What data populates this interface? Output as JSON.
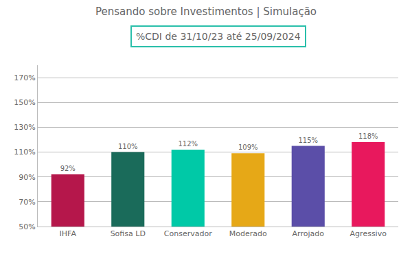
{
  "chart_data": {
    "type": "bar",
    "title": "Pensando sobre Investimentos | Simulação",
    "subtitle": "%CDI de 31/10/23 até 25/09/2024",
    "categories": [
      "IHFA",
      "Sofisa LD",
      "Conservador",
      "Moderado",
      "Arrojado",
      "Agressivo"
    ],
    "values": [
      92,
      110,
      112,
      109,
      115,
      118
    ],
    "value_labels": [
      "92%",
      "110%",
      "112%",
      "109%",
      "115%",
      "118%"
    ],
    "colors": [
      "#b5174b",
      "#1a6b5a",
      "#00c9a7",
      "#e6a817",
      "#5b4ea8",
      "#e8185d"
    ],
    "ylim": [
      50,
      180
    ],
    "yticks": [
      {
        "value": 50,
        "label": "50%"
      },
      {
        "value": 70,
        "label": "70%"
      },
      {
        "value": 90,
        "label": "90%"
      },
      {
        "value": 110,
        "label": "110%"
      },
      {
        "value": 130,
        "label": "130%"
      },
      {
        "value": 150,
        "label": "150%"
      },
      {
        "value": 170,
        "label": "170%"
      }
    ],
    "grid": true,
    "data_labels": true
  }
}
